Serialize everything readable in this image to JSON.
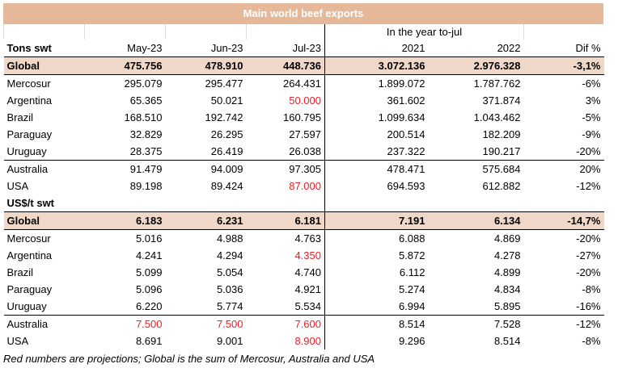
{
  "title": "Main world beef exports",
  "period_label": "In the year to-jul",
  "sections": [
    {
      "header": [
        "Tons swt",
        "May-23",
        "Jun-23",
        "Jul-23",
        "2021",
        "2022",
        "Dif %"
      ],
      "rows": [
        [
          "Global",
          "475.756",
          "478.910",
          "448.736",
          "3.072.136",
          "2.976.328",
          "-3,1%"
        ],
        [
          "Mercosur",
          "295.079",
          "295.477",
          "264.431",
          "1.899.072",
          "1.787.762",
          "-6%"
        ],
        [
          "Argentina",
          "65.365",
          "50.021",
          {
            "text": "50.000",
            "color": "#e8202a"
          },
          "361.602",
          "371.874",
          "3%"
        ],
        [
          "Brazil",
          "168.510",
          "192.742",
          "160.795",
          "1.099.634",
          "1.043.462",
          "-5%"
        ],
        [
          "Paraguay",
          "32.829",
          "26.295",
          "27.597",
          "200.514",
          "182.209",
          "-9%"
        ],
        [
          "Uruguay",
          "28.375",
          "26.419",
          "26.038",
          "237.322",
          "190.217",
          "-20%"
        ],
        [
          "Australia",
          "91.479",
          "94.009",
          "97.305",
          "478.471",
          "575.684",
          "20%"
        ],
        [
          "USA",
          "89.198",
          "89.424",
          {
            "text": "87.000",
            "color": "#e8202a"
          },
          "694.593",
          "612.882",
          "-12%"
        ]
      ]
    },
    {
      "header": [
        "US$/t swt"
      ],
      "rows": [
        [
          "Global",
          "6.183",
          "6.231",
          "6.181",
          "7.191",
          "6.134",
          "-14,7%"
        ],
        [
          "Mercosur",
          "5.016",
          "4.988",
          "4.763",
          "6.088",
          "4.869",
          "-20%"
        ],
        [
          "Argentina",
          "4.241",
          "4.294",
          {
            "text": "4.350",
            "color": "#e8202a"
          },
          "5.872",
          "4.278",
          "-27%"
        ],
        [
          "Brazil",
          "5.099",
          "5.054",
          "4.740",
          "6.112",
          "4.899",
          "-20%"
        ],
        [
          "Paraguay",
          "5.096",
          "5.036",
          "4.921",
          "5.274",
          "4.834",
          "-8%"
        ],
        [
          "Uruguay",
          "6.220",
          "5.774",
          "5.534",
          "6.994",
          "5.895",
          "-16%"
        ],
        [
          "Australia",
          {
            "text": "7.500",
            "color": "#e8202a"
          },
          {
            "text": "7.500",
            "color": "#e8202a"
          },
          {
            "text": "7.600",
            "color": "#e8202a"
          },
          "8.514",
          "7.528",
          "-12%"
        ],
        [
          "USA",
          "8.691",
          "9.001",
          {
            "text": "8.900",
            "color": "#e8202a"
          },
          "9.296",
          "8.514",
          "-8%"
        ]
      ]
    }
  ],
  "footnote": "Red numbers are projections; Global is the sum of Mercosur, Australia and USA"
}
